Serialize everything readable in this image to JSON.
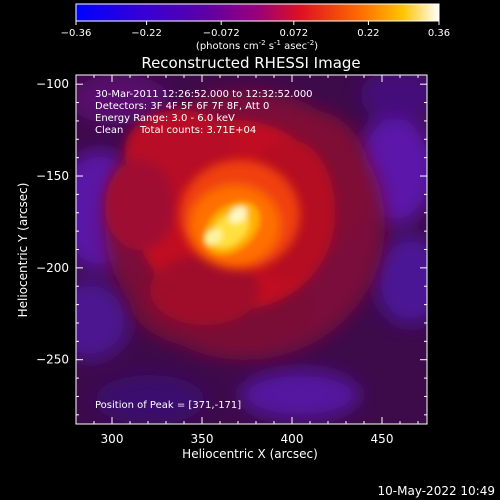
{
  "chart_data": {
    "type": "heatmap",
    "title": "Reconstructed RHESSI Image",
    "xlabel": "Heliocentric X (arcsec)",
    "ylabel": "Heliocentric Y (arcsec)",
    "xlim": [
      280,
      475
    ],
    "ylim": [
      -285,
      -95
    ],
    "xticks": [
      300,
      350,
      400,
      450
    ],
    "yticks": [
      -100,
      -150,
      -200,
      -250
    ],
    "colorbar": {
      "min": -0.36,
      "max": 0.36,
      "ticks": [
        "-0.36",
        "-0.22",
        "-0.072",
        "0.072",
        "0.22",
        "0.36"
      ],
      "unit_label": "(photons cm",
      "unit_exp1": "-2",
      "unit_mid": " s",
      "unit_exp2": "-1",
      "unit_mid2": " asec",
      "unit_exp3": "-2",
      "unit_close": ")"
    },
    "annotations": {
      "time_range": "30-Mar-2011 12:26:52.000 to 12:32:52.000",
      "detectors": "Detectors: 3F 4F 5F 6F 7F 8F, Att 0",
      "energy": "Energy Range: 3.0 - 6.0 keV",
      "clean_label": "Clean",
      "counts": "Total counts: 3.71E+04",
      "peak": "Position of Peak = [371,-171]"
    },
    "peak": {
      "x": 371,
      "y": -171
    },
    "footer_date": "10-May-2022 10:49",
    "grid": false
  }
}
